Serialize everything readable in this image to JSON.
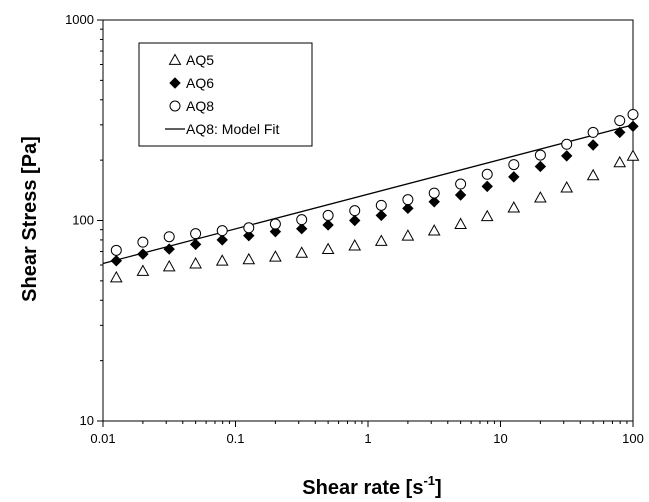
{
  "chart_data": {
    "type": "scatter",
    "xlabel": "Shear rate [s",
    "xlabel_sup": "-1",
    "xlabel_end": "]",
    "ylabel": "Shear Stress [Pa]",
    "x_scale": "log",
    "y_scale": "log",
    "xlim": [
      0.01,
      100
    ],
    "ylim": [
      10,
      1000
    ],
    "x_ticks": [
      0.01,
      0.1,
      1,
      10,
      100
    ],
    "x_tick_labels": [
      "0.01",
      "0.1",
      "1",
      "10",
      "100"
    ],
    "y_ticks": [
      10,
      100,
      1000
    ],
    "y_tick_labels": [
      "10",
      "100",
      "1000"
    ],
    "grid": false,
    "legend_position": "top-left",
    "x": [
      0.0126,
      0.02,
      0.0316,
      0.05,
      0.0794,
      0.126,
      0.2,
      0.316,
      0.5,
      0.794,
      1.26,
      2.0,
      3.16,
      5.0,
      7.94,
      12.6,
      20.0,
      31.6,
      50.0,
      79.4,
      100
    ],
    "series": [
      {
        "name": "AQ5",
        "marker": "open-triangle",
        "values": [
          52,
          56,
          59,
          61,
          63,
          64,
          66,
          69,
          72,
          75,
          79,
          84,
          89,
          96,
          105,
          116,
          130,
          146,
          168,
          195,
          210
        ]
      },
      {
        "name": "AQ6",
        "marker": "filled-diamond",
        "values": [
          63,
          68,
          72,
          76,
          80,
          84,
          88,
          91,
          95,
          100,
          106,
          115,
          124,
          134,
          148,
          165,
          186,
          210,
          238,
          275,
          295
        ]
      },
      {
        "name": "AQ8",
        "marker": "open-circle",
        "values": [
          71,
          78,
          83,
          86,
          89,
          92,
          96,
          101,
          106,
          112,
          119,
          127,
          137,
          152,
          170,
          190,
          212,
          240,
          275,
          315,
          338
        ]
      }
    ],
    "fit": {
      "name": "AQ8: Model Fit",
      "style": "solid-line",
      "x": [
        0.01,
        100
      ],
      "y": [
        61,
        300
      ]
    }
  }
}
